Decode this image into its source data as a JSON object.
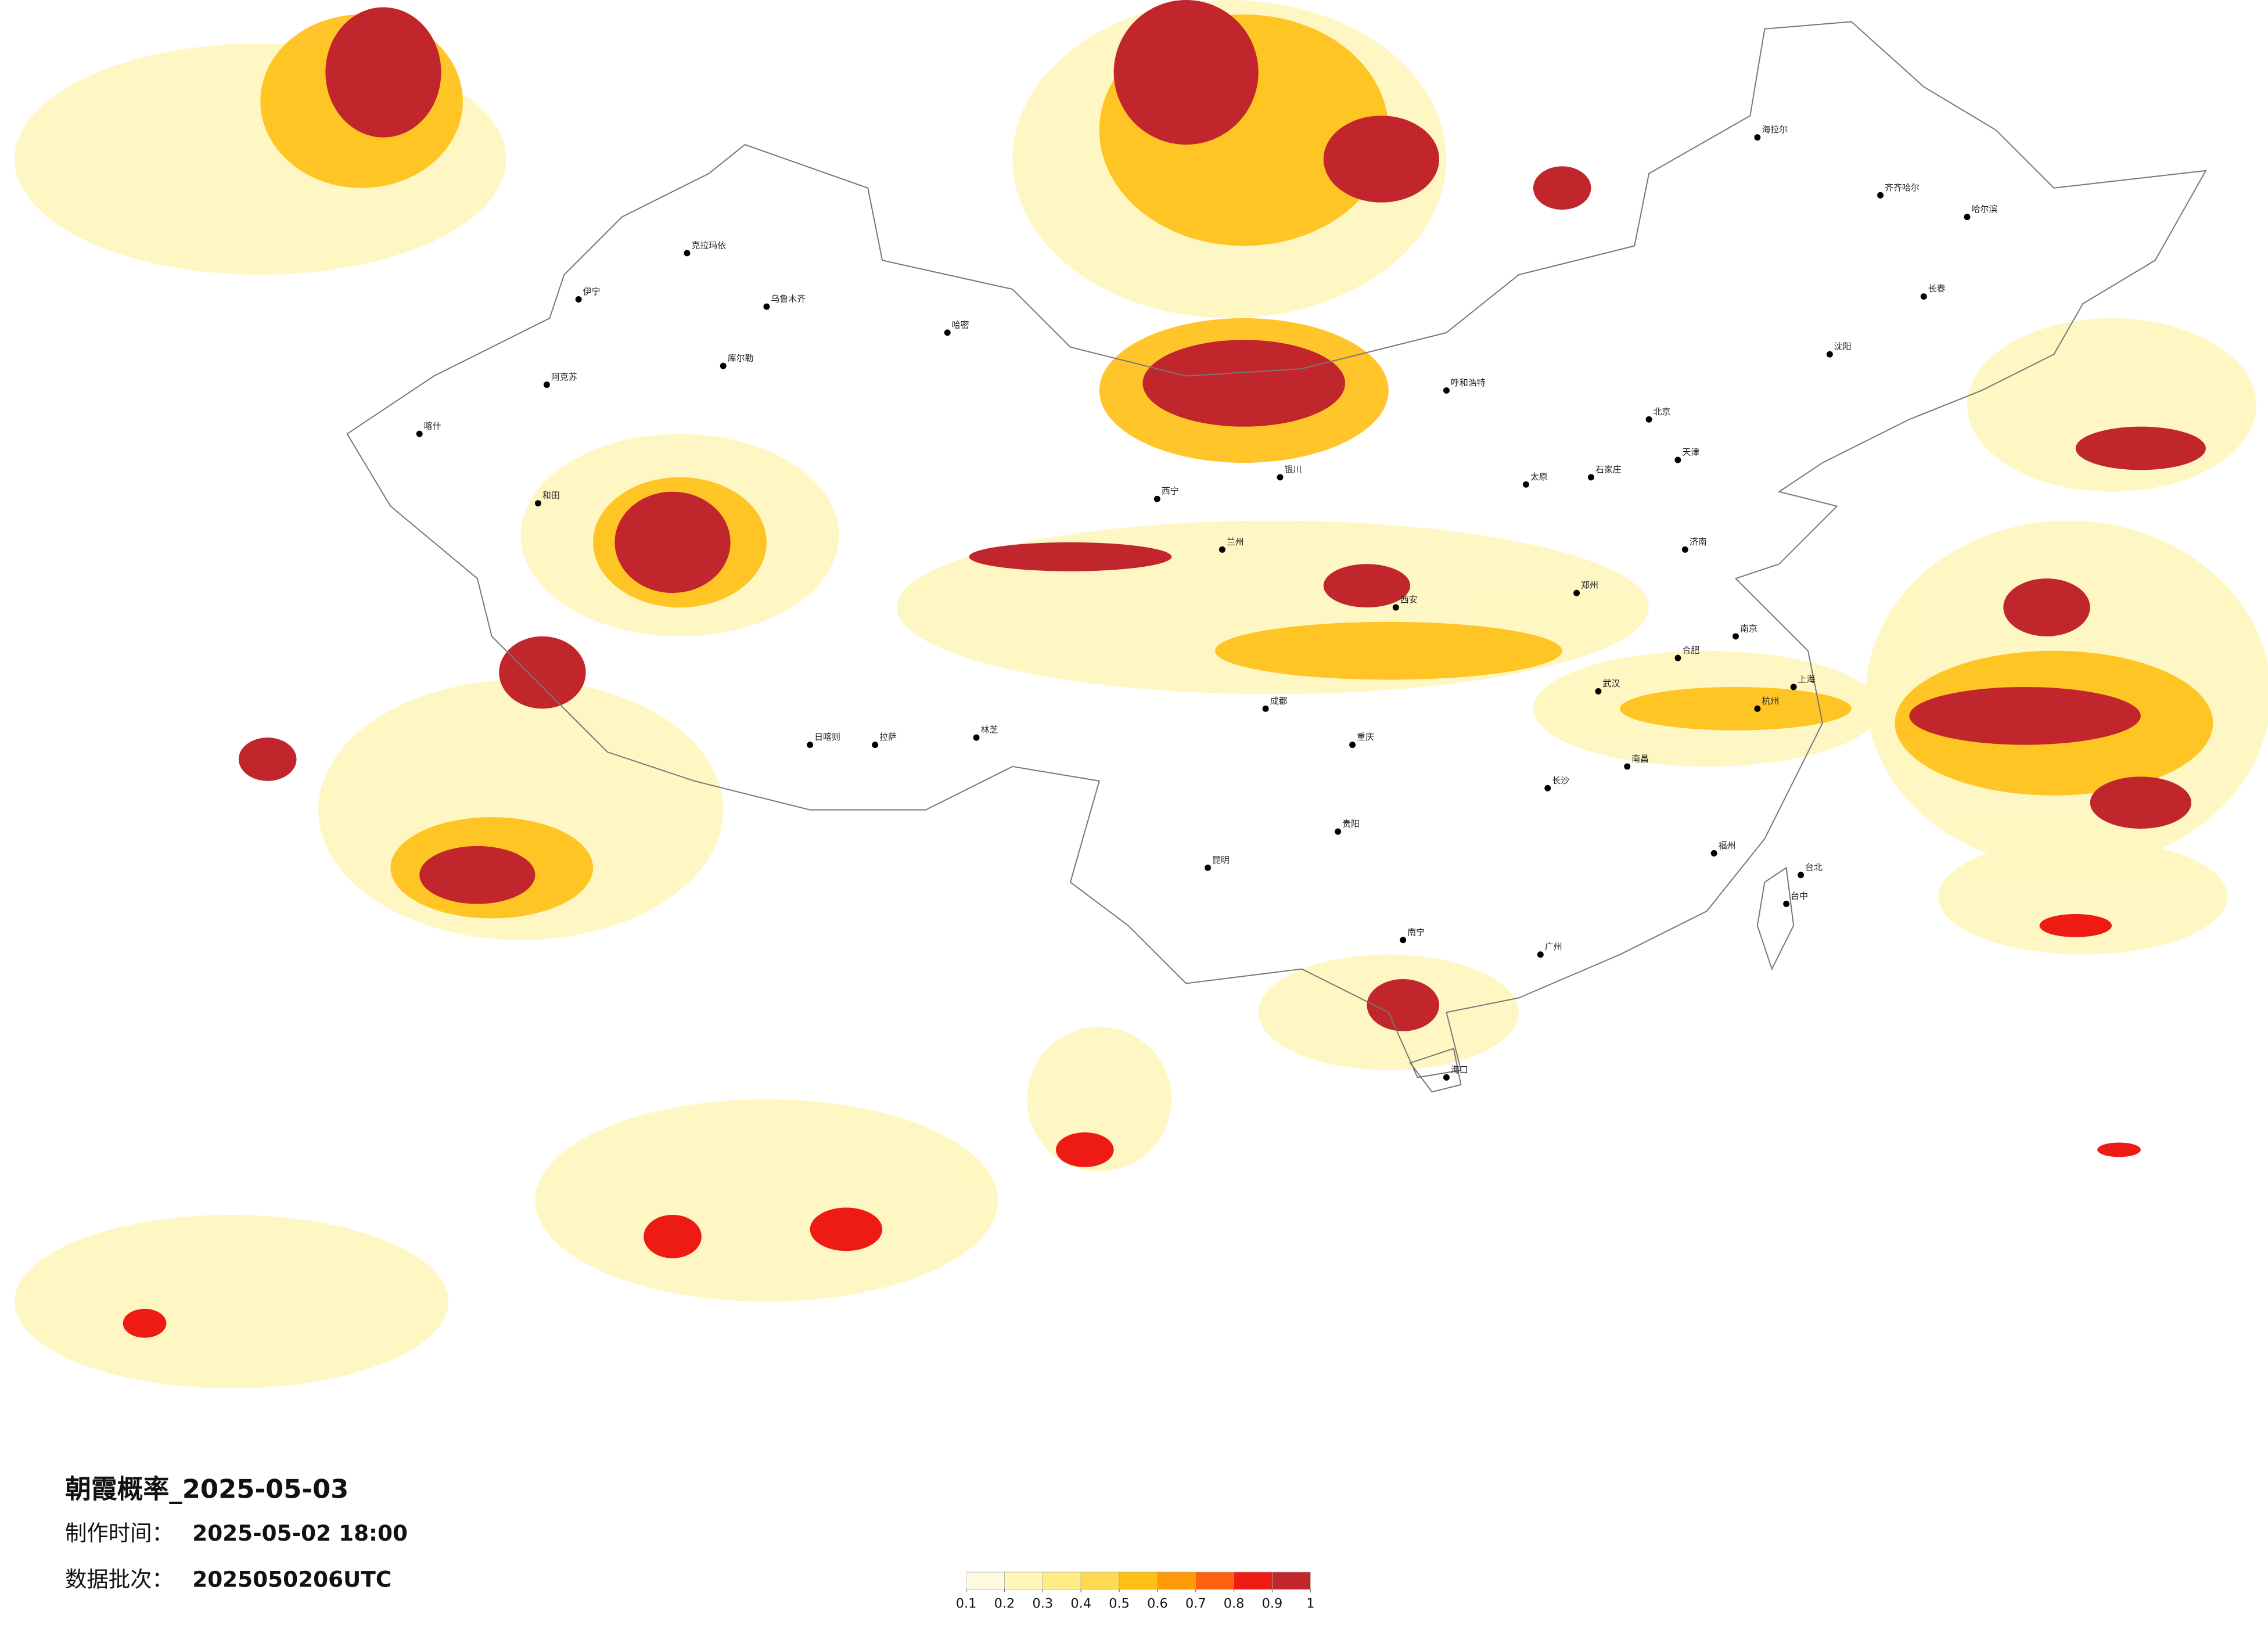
{
  "title": "朝霞概率_2025-05-03",
  "made_time_label": "制作时间：",
  "made_time": "2025-05-02 18:00",
  "batch_label": "数据批次：",
  "batch": "2025050206UTC",
  "colorbar": {
    "ticks": [
      0.1,
      0.2,
      0.3,
      0.4,
      0.5,
      0.6,
      0.7,
      0.8,
      0.9,
      1
    ],
    "colors": [
      "#fffbe3",
      "#fff6b8",
      "#ffec85",
      "#ffd950",
      "#ffbf14",
      "#ff9a0a",
      "#ff6010",
      "#ee1a14",
      "#c0262c"
    ]
  },
  "cities": [
    "克拉玛依",
    "乌鲁木齐",
    "伊宁",
    "阿克苏",
    "库尔勒",
    "和田",
    "哈密",
    "喀什",
    "拉萨",
    "日喀则",
    "林芝",
    "西宁",
    "兰州",
    "银川",
    "呼和浩特",
    "北京",
    "天津",
    "石家庄",
    "太原",
    "济南",
    "郑州",
    "西安",
    "成都",
    "重庆",
    "贵阳",
    "昆明",
    "南宁",
    "广州",
    "福州",
    "南昌",
    "长沙",
    "武汉",
    "合肥",
    "南京",
    "上海",
    "杭州",
    "沈阳",
    "长春",
    "哈尔滨",
    "海拉尔",
    "齐齐哈尔",
    "海口",
    "台北",
    "台中"
  ]
}
